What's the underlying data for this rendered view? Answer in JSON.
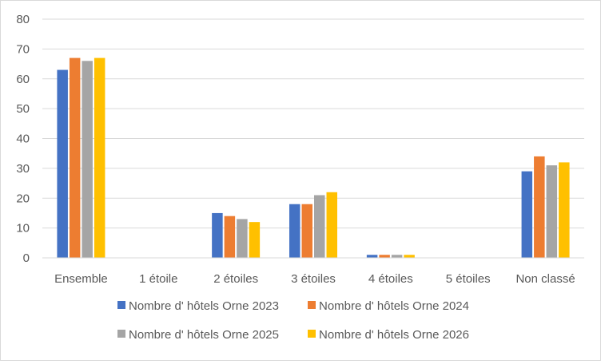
{
  "chart_data": {
    "type": "bar",
    "categories": [
      "Ensemble",
      "1 étoile",
      "2 étoiles",
      "3 étoiles",
      "4 étoiles",
      "5 étoiles",
      "Non classé"
    ],
    "series": [
      {
        "name": "Nombre d' hôtels Orne 2023",
        "color": "#4472C4",
        "values": [
          63,
          0,
          15,
          18,
          1,
          0,
          29
        ]
      },
      {
        "name": "Nombre d' hôtels Orne 2024",
        "color": "#ED7D31",
        "values": [
          67,
          0,
          14,
          18,
          1,
          0,
          34
        ]
      },
      {
        "name": "Nombre d' hôtels Orne 2025",
        "color": "#A5A5A5",
        "values": [
          66,
          0,
          13,
          21,
          1,
          0,
          31
        ]
      },
      {
        "name": "Nombre d' hôtels Orne 2026",
        "color": "#FFC000",
        "values": [
          67,
          0,
          12,
          22,
          1,
          0,
          32
        ]
      }
    ],
    "yticks": [
      "0",
      "10",
      "20",
      "30",
      "40",
      "50",
      "60",
      "70",
      "80"
    ],
    "ylim": [
      0,
      80
    ],
    "grid": true,
    "legend_position": "bottom",
    "title": "",
    "xlabel": "",
    "ylabel": ""
  }
}
